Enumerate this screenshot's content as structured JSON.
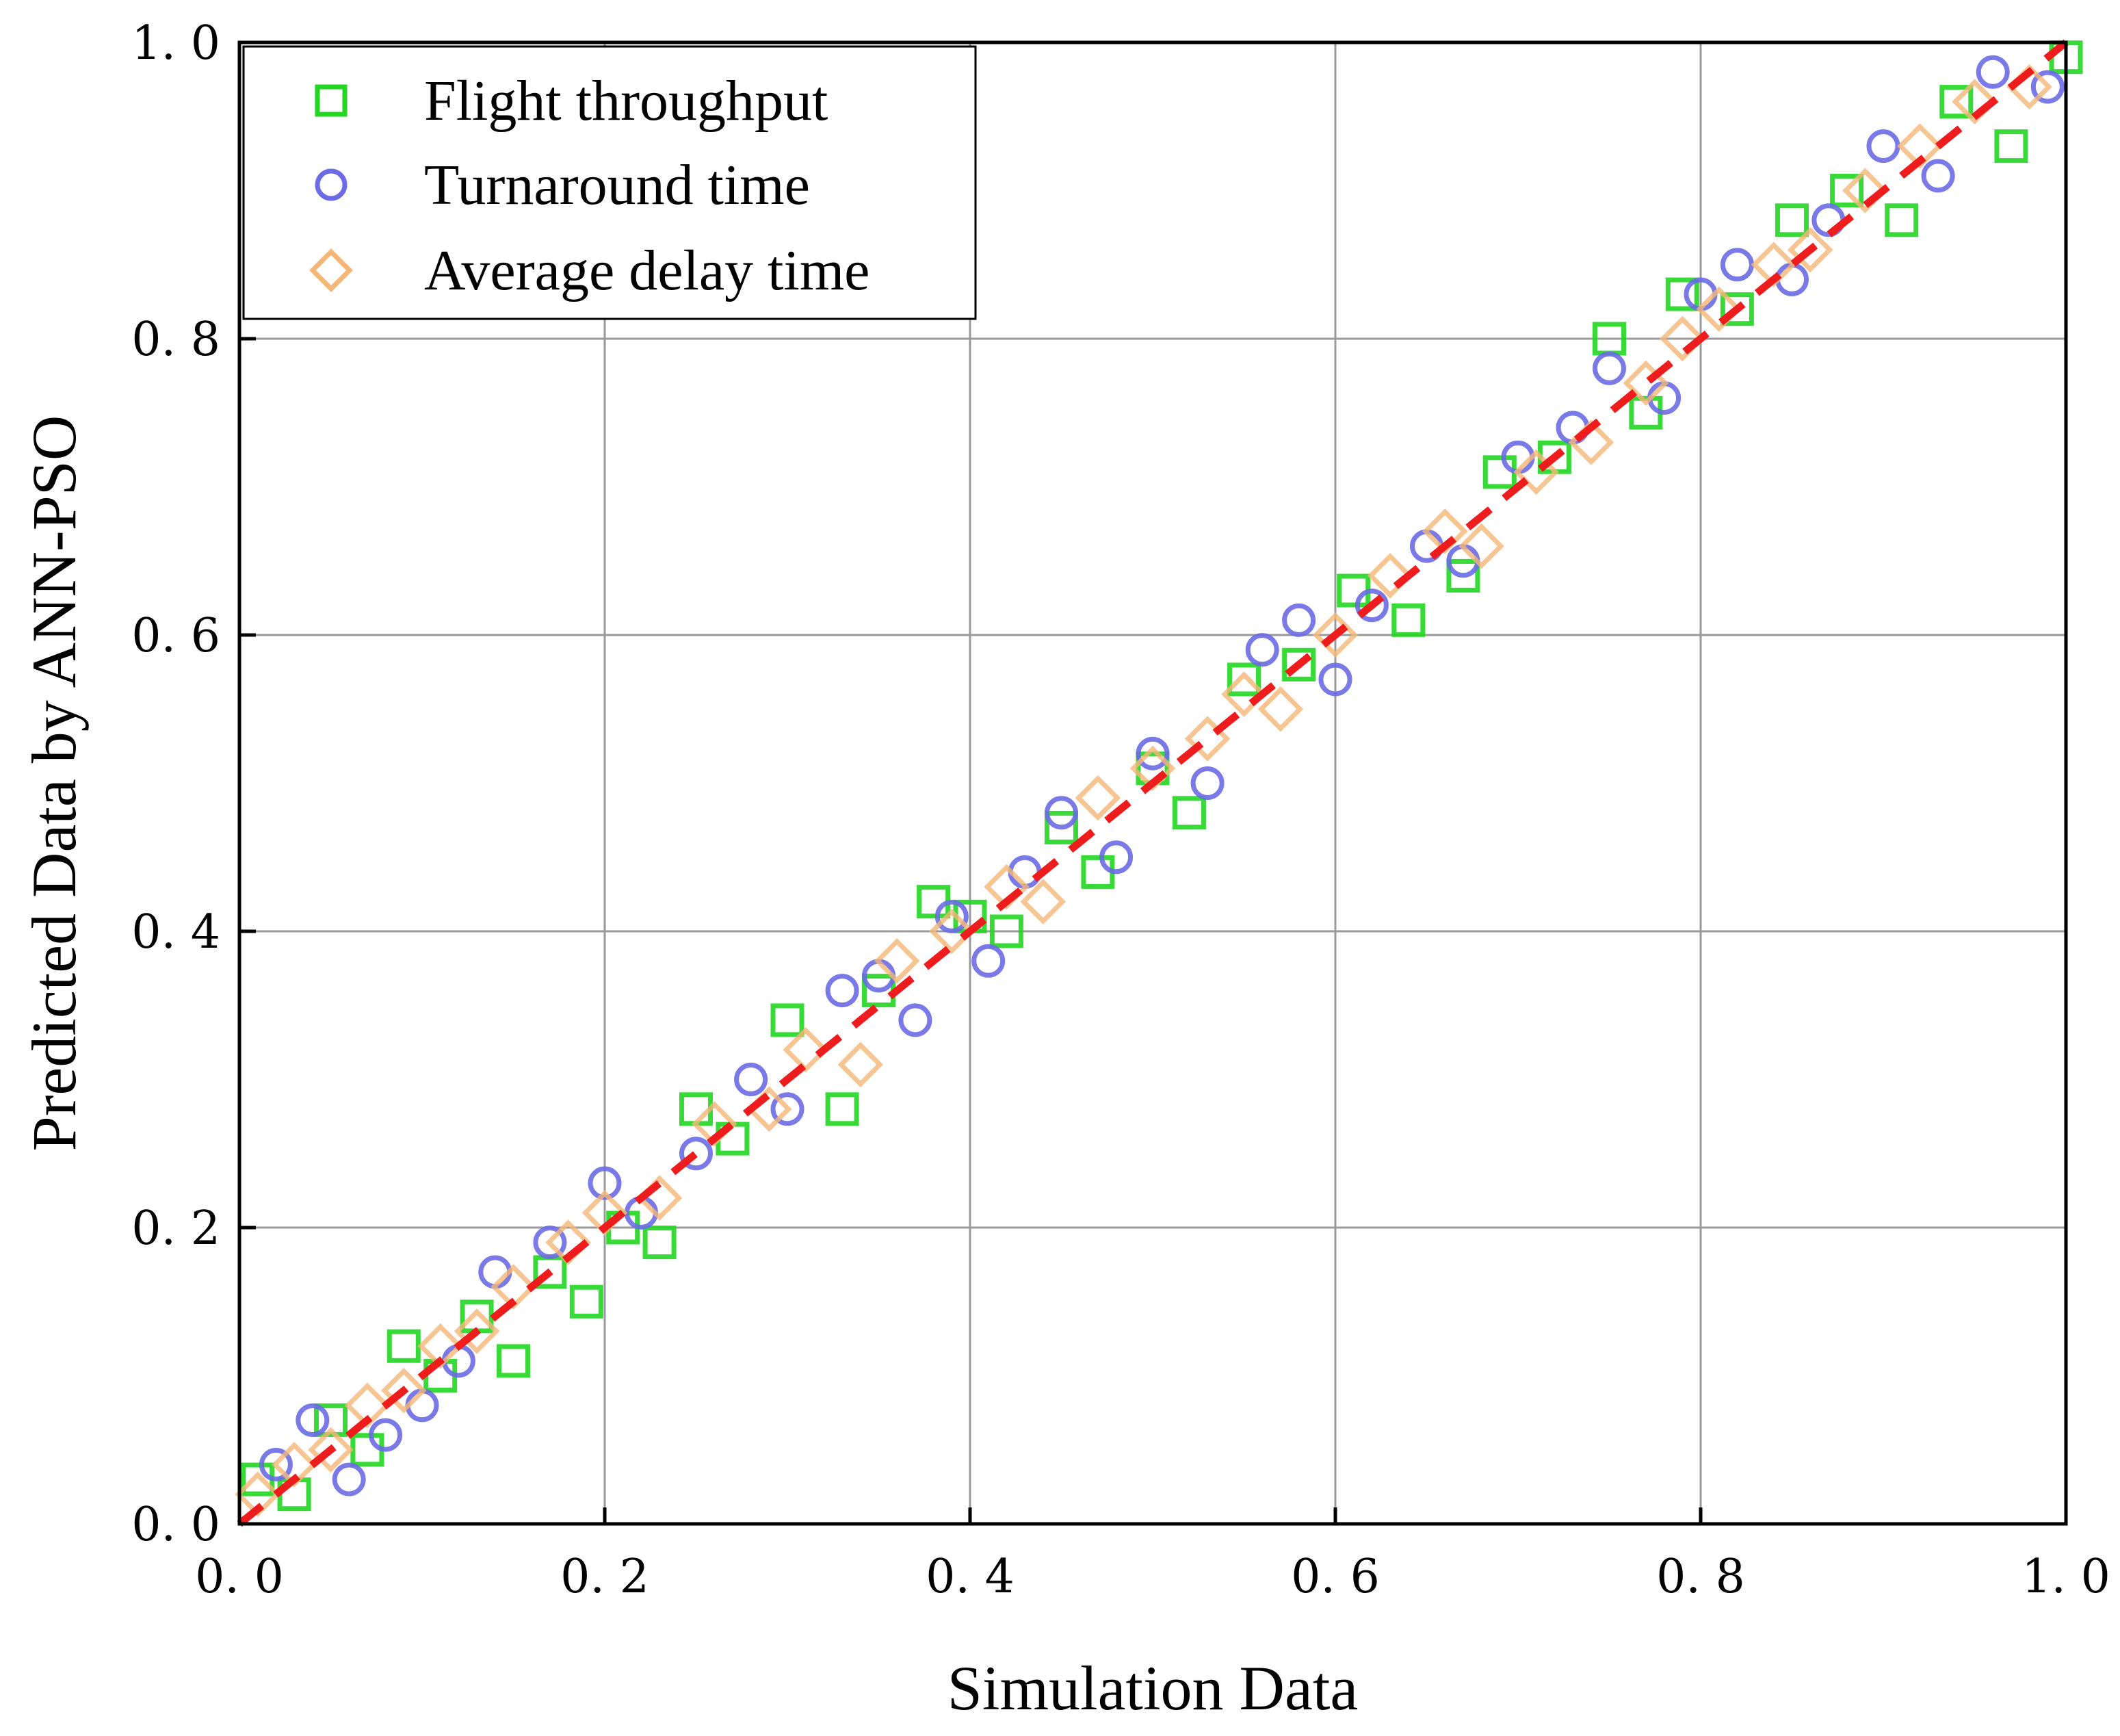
{
  "chart_data": {
    "type": "scatter",
    "title": "",
    "xlabel": "Simulation Data",
    "ylabel": "Predicted Data by ANN-PSO",
    "xlim": [
      0.0,
      1.0
    ],
    "ylim": [
      0.0,
      1.0
    ],
    "grid": true,
    "legend_position": "top-left",
    "x_ticks": [
      0.0,
      0.2,
      0.4,
      0.6,
      0.8,
      1.0
    ],
    "y_ticks": [
      0.0,
      0.2,
      0.4,
      0.6,
      0.8,
      1.0
    ],
    "x_tick_labels": [
      "0. 0",
      "0. 2",
      "0. 4",
      "0. 6",
      "0. 8",
      "1. 0"
    ],
    "y_tick_labels": [
      "0. 0",
      "0. 2",
      "0. 4",
      "0. 6",
      "0. 8",
      "1. 0"
    ],
    "reference_line": {
      "name": "y = x",
      "style": "dashed",
      "color": "#ee1c1c",
      "x": [
        0.0,
        1.0
      ],
      "y": [
        0.0,
        1.0
      ]
    },
    "series": [
      {
        "name": "Flight throughput",
        "marker": "square",
        "color": "#22d622",
        "x": [
          0.01,
          0.03,
          0.05,
          0.07,
          0.09,
          0.11,
          0.13,
          0.15,
          0.17,
          0.19,
          0.21,
          0.23,
          0.25,
          0.27,
          0.3,
          0.33,
          0.35,
          0.38,
          0.4,
          0.42,
          0.45,
          0.47,
          0.5,
          0.52,
          0.55,
          0.58,
          0.61,
          0.64,
          0.67,
          0.69,
          0.72,
          0.75,
          0.77,
          0.79,
          0.82,
          0.85,
          0.88,
          0.91,
          0.94,
          0.97,
          1.0
        ],
        "y": [
          0.03,
          0.02,
          0.07,
          0.05,
          0.12,
          0.1,
          0.14,
          0.11,
          0.17,
          0.15,
          0.2,
          0.19,
          0.28,
          0.26,
          0.34,
          0.28,
          0.36,
          0.42,
          0.41,
          0.4,
          0.47,
          0.44,
          0.51,
          0.48,
          0.57,
          0.58,
          0.63,
          0.61,
          0.64,
          0.71,
          0.72,
          0.8,
          0.75,
          0.83,
          0.82,
          0.88,
          0.9,
          0.88,
          0.96,
          0.93,
          0.99
        ]
      },
      {
        "name": "Turnaround time",
        "marker": "circle",
        "color": "#6b6be6",
        "x": [
          0.02,
          0.04,
          0.06,
          0.08,
          0.1,
          0.12,
          0.14,
          0.17,
          0.2,
          0.22,
          0.25,
          0.28,
          0.3,
          0.33,
          0.35,
          0.37,
          0.39,
          0.41,
          0.43,
          0.45,
          0.48,
          0.5,
          0.53,
          0.56,
          0.58,
          0.6,
          0.62,
          0.65,
          0.67,
          0.7,
          0.73,
          0.75,
          0.78,
          0.8,
          0.82,
          0.85,
          0.87,
          0.9,
          0.93,
          0.96,
          0.99
        ],
        "y": [
          0.04,
          0.07,
          0.03,
          0.06,
          0.08,
          0.11,
          0.17,
          0.19,
          0.23,
          0.21,
          0.25,
          0.3,
          0.28,
          0.36,
          0.37,
          0.34,
          0.41,
          0.38,
          0.44,
          0.48,
          0.45,
          0.52,
          0.5,
          0.59,
          0.61,
          0.57,
          0.62,
          0.66,
          0.65,
          0.72,
          0.74,
          0.78,
          0.76,
          0.83,
          0.85,
          0.84,
          0.88,
          0.93,
          0.91,
          0.98,
          0.97
        ]
      },
      {
        "name": "Average delay time",
        "marker": "diamond",
        "color": "#f5b778",
        "x": [
          0.01,
          0.03,
          0.05,
          0.07,
          0.09,
          0.11,
          0.13,
          0.15,
          0.18,
          0.2,
          0.23,
          0.26,
          0.29,
          0.31,
          0.34,
          0.36,
          0.39,
          0.42,
          0.44,
          0.47,
          0.5,
          0.53,
          0.55,
          0.57,
          0.6,
          0.63,
          0.66,
          0.68,
          0.71,
          0.74,
          0.77,
          0.79,
          0.81,
          0.84,
          0.86,
          0.89,
          0.92,
          0.95,
          0.98
        ],
        "y": [
          0.02,
          0.04,
          0.05,
          0.08,
          0.09,
          0.12,
          0.13,
          0.16,
          0.19,
          0.21,
          0.22,
          0.27,
          0.28,
          0.32,
          0.31,
          0.38,
          0.4,
          0.43,
          0.42,
          0.49,
          0.51,
          0.53,
          0.56,
          0.55,
          0.6,
          0.64,
          0.67,
          0.66,
          0.71,
          0.73,
          0.77,
          0.8,
          0.82,
          0.85,
          0.86,
          0.9,
          0.93,
          0.96,
          0.97
        ]
      }
    ]
  }
}
